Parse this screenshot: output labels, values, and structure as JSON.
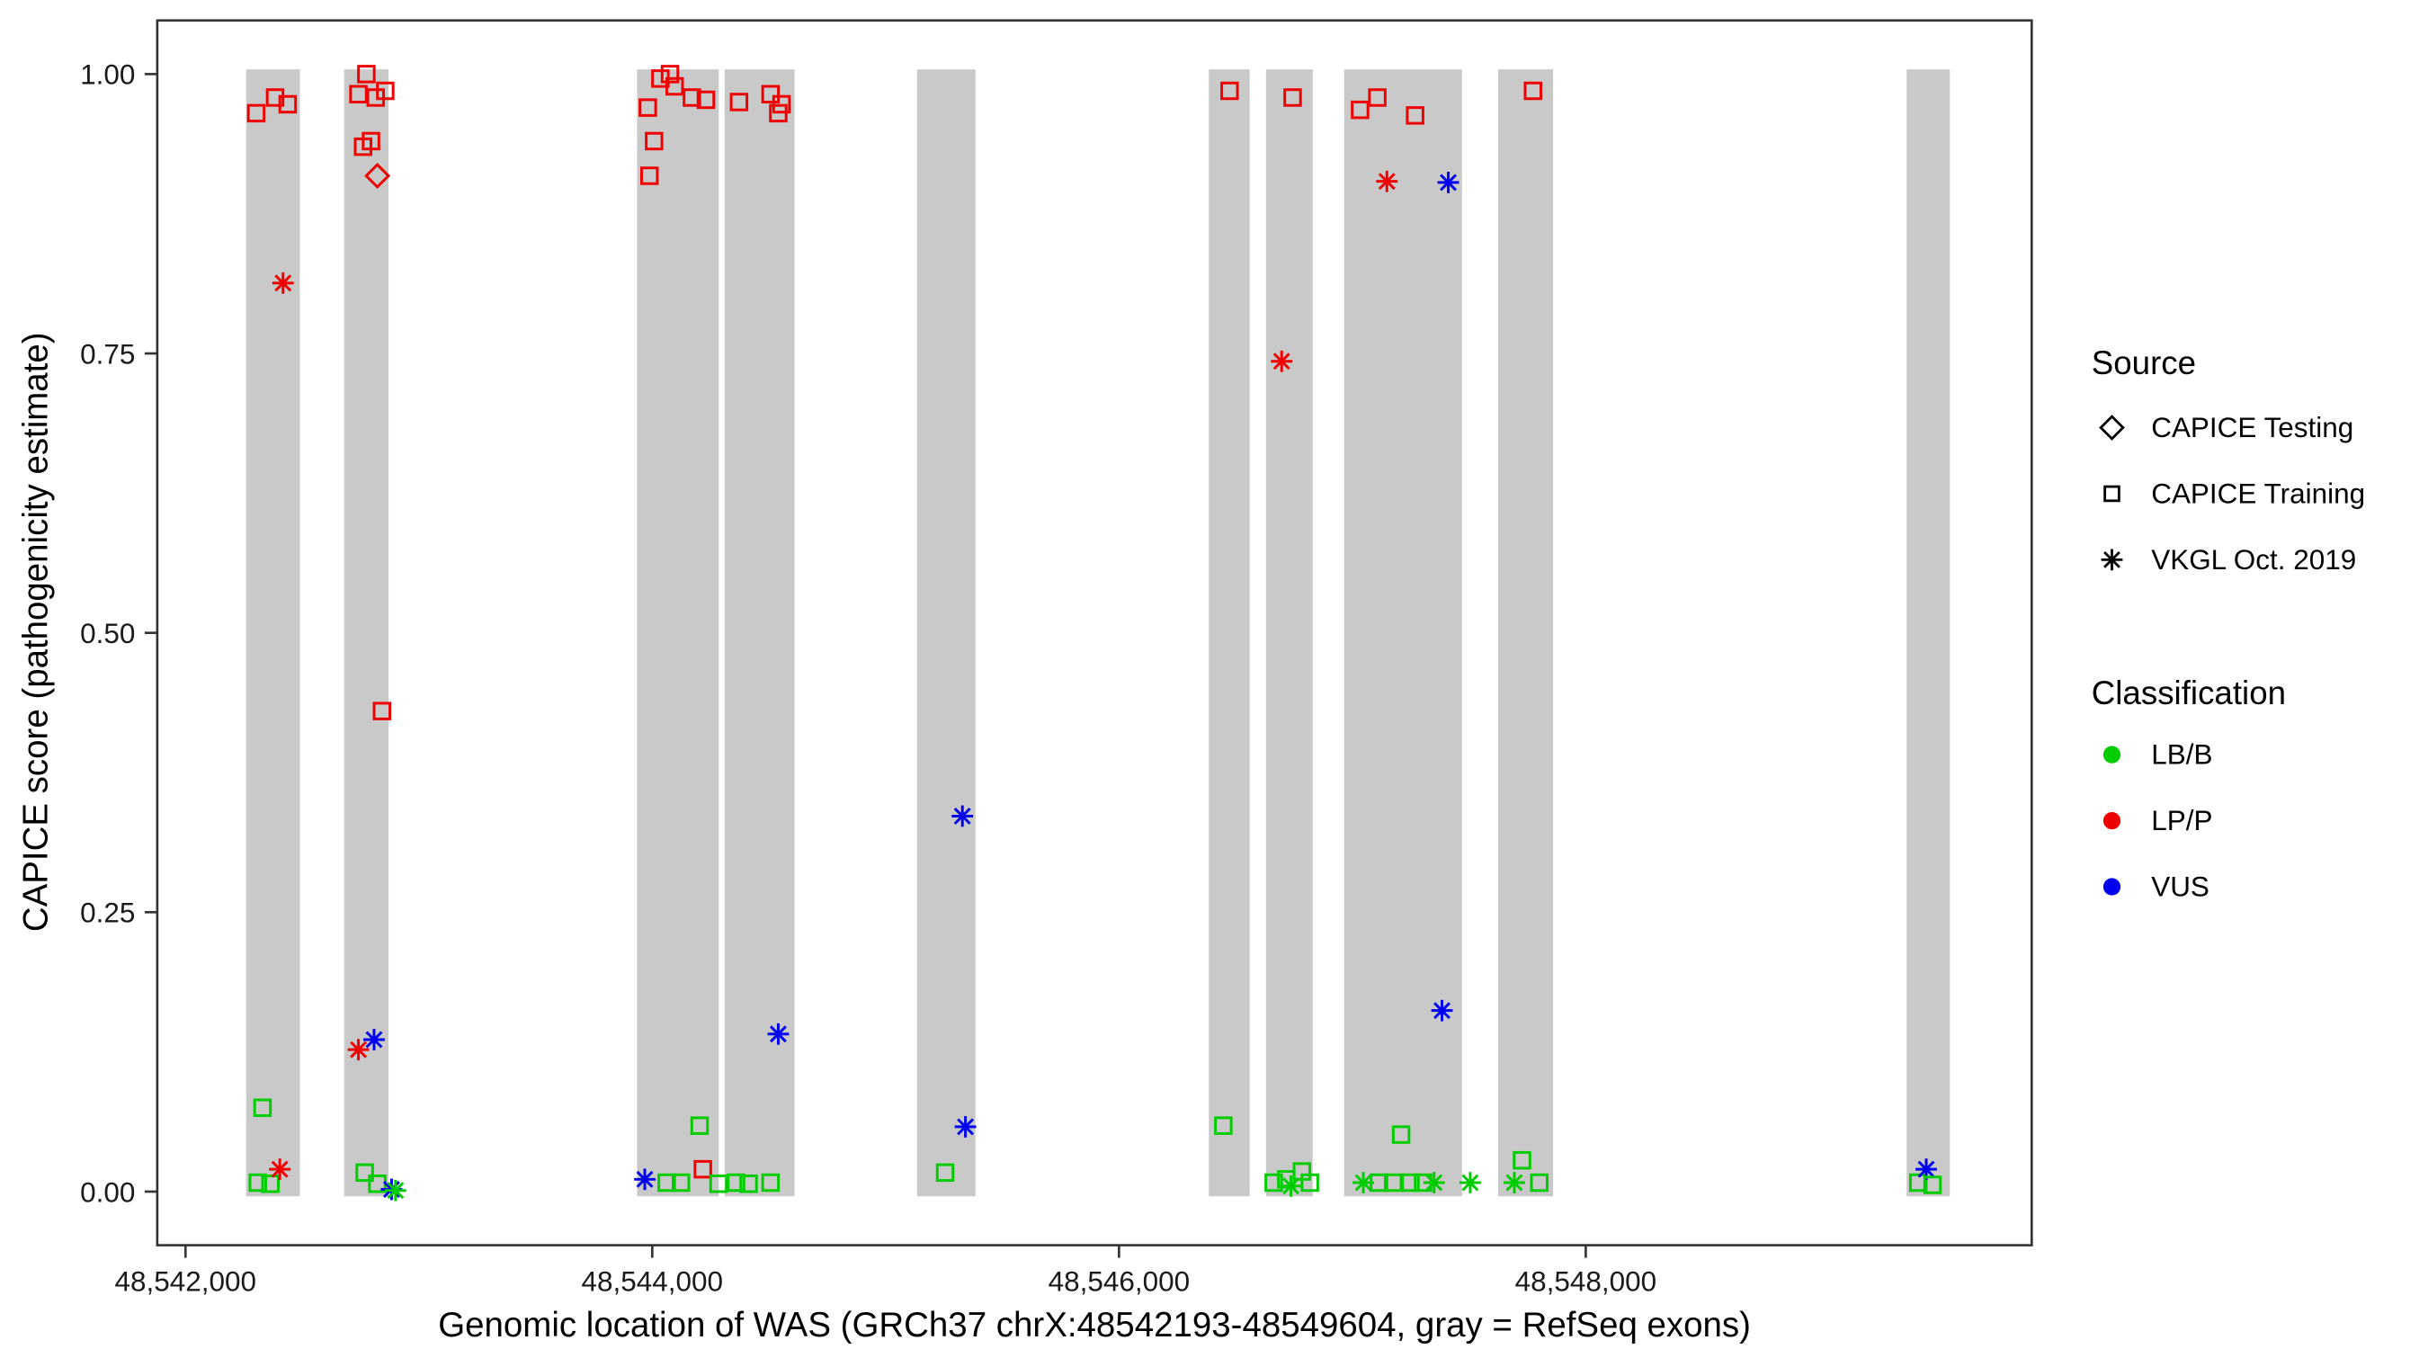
{
  "chart_data": {
    "type": "scatter",
    "title": "",
    "xlabel": "Genomic location of WAS (GRCh37 chrX:48542193-48549604, gray = RefSeq exons)",
    "ylabel": "CAPICE score (pathogenicity estimate)",
    "x_domain": [
      48541879,
      48549911
    ],
    "y_domain": [
      -0.048,
      1.048
    ],
    "x_ticks": [
      {
        "value": 48542000,
        "label": "48,542,000"
      },
      {
        "value": 48544000,
        "label": "48,544,000"
      },
      {
        "value": 48546000,
        "label": "48,546,000"
      },
      {
        "value": 48548000,
        "label": "48,548,000"
      }
    ],
    "y_ticks": [
      {
        "value": 0.0,
        "label": "0.00"
      },
      {
        "value": 0.25,
        "label": "0.25"
      },
      {
        "value": 0.5,
        "label": "0.50"
      },
      {
        "value": 0.75,
        "label": "0.75"
      },
      {
        "value": 1.0,
        "label": "1.00"
      }
    ],
    "exon_color": "#C9C9C9",
    "exons": [
      [
        48542260,
        48542490
      ],
      [
        48542680,
        48542870
      ],
      [
        48543935,
        48544285
      ],
      [
        48544310,
        48544610
      ],
      [
        48545135,
        48545385
      ],
      [
        48546385,
        48546560
      ],
      [
        48546630,
        48546830
      ],
      [
        48546965,
        48547470
      ],
      [
        48547625,
        48547860
      ],
      [
        48549375,
        48549560
      ]
    ],
    "colors": {
      "LB/B": "#00CC00",
      "LP/P": "#EE0000",
      "VUS": "#0000EE"
    },
    "shapes": {
      "CAPICE Testing": "diamond",
      "CAPICE Training": "square",
      "VKGL Oct. 2019": "asterisk"
    },
    "points": [
      {
        "x": 48542303,
        "y": 0.965,
        "source": "CAPICE Training",
        "class": "LP/P"
      },
      {
        "x": 48542310,
        "y": 0.008,
        "source": "CAPICE Training",
        "class": "LB/B"
      },
      {
        "x": 48542330,
        "y": 0.075,
        "source": "CAPICE Training",
        "class": "LB/B"
      },
      {
        "x": 48542364,
        "y": 0.007,
        "source": "CAPICE Training",
        "class": "LB/B"
      },
      {
        "x": 48542384,
        "y": 0.979,
        "source": "CAPICE Training",
        "class": "LP/P"
      },
      {
        "x": 48542404,
        "y": 0.02,
        "source": "VKGL Oct. 2019",
        "class": "LP/P"
      },
      {
        "x": 48542418,
        "y": 0.813,
        "source": "VKGL Oct. 2019",
        "class": "LP/P"
      },
      {
        "x": 48542438,
        "y": 0.973,
        "source": "CAPICE Training",
        "class": "LP/P"
      },
      {
        "x": 48542741,
        "y": 0.982,
        "source": "CAPICE Training",
        "class": "LP/P"
      },
      {
        "x": 48542741,
        "y": 0.127,
        "source": "VKGL Oct. 2019",
        "class": "LP/P"
      },
      {
        "x": 48542761,
        "y": 0.935,
        "source": "CAPICE Training",
        "class": "LP/P"
      },
      {
        "x": 48542768,
        "y": 0.017,
        "source": "CAPICE Training",
        "class": "LB/B"
      },
      {
        "x": 48542775,
        "y": 1.0,
        "source": "CAPICE Training",
        "class": "LP/P"
      },
      {
        "x": 48542795,
        "y": 0.94,
        "source": "CAPICE Training",
        "class": "LP/P"
      },
      {
        "x": 48542808,
        "y": 0.136,
        "source": "VKGL Oct. 2019",
        "class": "VUS"
      },
      {
        "x": 48542815,
        "y": 0.979,
        "source": "CAPICE Training",
        "class": "LP/P"
      },
      {
        "x": 48542822,
        "y": 0.909,
        "source": "CAPICE Testing",
        "class": "LP/P"
      },
      {
        "x": 48542822,
        "y": 0.007,
        "source": "CAPICE Training",
        "class": "LB/B"
      },
      {
        "x": 48542842,
        "y": 0.43,
        "source": "CAPICE Training",
        "class": "LP/P"
      },
      {
        "x": 48542856,
        "y": 0.985,
        "source": "CAPICE Training",
        "class": "LP/P"
      },
      {
        "x": 48542883,
        "y": 0.002,
        "source": "VKGL Oct. 2019",
        "class": "VUS"
      },
      {
        "x": 48542900,
        "y": 0.001,
        "source": "VKGL Oct. 2019",
        "class": "LB/B"
      },
      {
        "x": 48543968,
        "y": 0.011,
        "source": "VKGL Oct. 2019",
        "class": "VUS"
      },
      {
        "x": 48543981,
        "y": 0.97,
        "source": "CAPICE Training",
        "class": "LP/P"
      },
      {
        "x": 48543988,
        "y": 0.909,
        "source": "CAPICE Training",
        "class": "LP/P"
      },
      {
        "x": 48544008,
        "y": 0.94,
        "source": "CAPICE Training",
        "class": "LP/P"
      },
      {
        "x": 48544035,
        "y": 0.996,
        "source": "CAPICE Training",
        "class": "LP/P"
      },
      {
        "x": 48544062,
        "y": 0.008,
        "source": "CAPICE Training",
        "class": "LB/B"
      },
      {
        "x": 48544076,
        "y": 1.0,
        "source": "CAPICE Training",
        "class": "LP/P"
      },
      {
        "x": 48544096,
        "y": 0.989,
        "source": "CAPICE Training",
        "class": "LP/P"
      },
      {
        "x": 48544123,
        "y": 0.008,
        "source": "CAPICE Training",
        "class": "LB/B"
      },
      {
        "x": 48544170,
        "y": 0.979,
        "source": "CAPICE Training",
        "class": "LP/P"
      },
      {
        "x": 48544203,
        "y": 0.059,
        "source": "CAPICE Training",
        "class": "LB/B"
      },
      {
        "x": 48544217,
        "y": 0.02,
        "source": "CAPICE Training",
        "class": "LP/P"
      },
      {
        "x": 48544230,
        "y": 0.977,
        "source": "CAPICE Training",
        "class": "LP/P"
      },
      {
        "x": 48544284,
        "y": 0.007,
        "source": "CAPICE Training",
        "class": "LB/B"
      },
      {
        "x": 48544359,
        "y": 0.008,
        "source": "CAPICE Training",
        "class": "LB/B"
      },
      {
        "x": 48544372,
        "y": 0.975,
        "source": "CAPICE Training",
        "class": "LP/P"
      },
      {
        "x": 48544413,
        "y": 0.007,
        "source": "CAPICE Training",
        "class": "LB/B"
      },
      {
        "x": 48544507,
        "y": 0.982,
        "source": "CAPICE Training",
        "class": "LP/P"
      },
      {
        "x": 48544507,
        "y": 0.008,
        "source": "CAPICE Training",
        "class": "LB/B"
      },
      {
        "x": 48544540,
        "y": 0.965,
        "source": "CAPICE Training",
        "class": "LP/P"
      },
      {
        "x": 48544540,
        "y": 0.141,
        "source": "VKGL Oct. 2019",
        "class": "VUS"
      },
      {
        "x": 48544554,
        "y": 0.973,
        "source": "CAPICE Training",
        "class": "LP/P"
      },
      {
        "x": 48545255,
        "y": 0.017,
        "source": "CAPICE Training",
        "class": "LB/B"
      },
      {
        "x": 48545329,
        "y": 0.336,
        "source": "VKGL Oct. 2019",
        "class": "VUS"
      },
      {
        "x": 48545342,
        "y": 0.058,
        "source": "VKGL Oct. 2019",
        "class": "VUS"
      },
      {
        "x": 48546447,
        "y": 0.059,
        "source": "CAPICE Training",
        "class": "LB/B"
      },
      {
        "x": 48546474,
        "y": 0.985,
        "source": "CAPICE Training",
        "class": "LP/P"
      },
      {
        "x": 48546663,
        "y": 0.008,
        "source": "CAPICE Training",
        "class": "LB/B"
      },
      {
        "x": 48546697,
        "y": 0.743,
        "source": "VKGL Oct. 2019",
        "class": "LP/P"
      },
      {
        "x": 48546717,
        "y": 0.011,
        "source": "CAPICE Training",
        "class": "LB/B"
      },
      {
        "x": 48546737,
        "y": 0.005,
        "source": "VKGL Oct. 2019",
        "class": "LB/B"
      },
      {
        "x": 48546744,
        "y": 0.979,
        "source": "CAPICE Training",
        "class": "LP/P"
      },
      {
        "x": 48546784,
        "y": 0.018,
        "source": "CAPICE Training",
        "class": "LB/B"
      },
      {
        "x": 48546818,
        "y": 0.008,
        "source": "CAPICE Training",
        "class": "LB/B"
      },
      {
        "x": 48547033,
        "y": 0.968,
        "source": "CAPICE Training",
        "class": "LP/P"
      },
      {
        "x": 48547047,
        "y": 0.008,
        "source": "VKGL Oct. 2019",
        "class": "LB/B"
      },
      {
        "x": 48547107,
        "y": 0.979,
        "source": "CAPICE Training",
        "class": "LP/P"
      },
      {
        "x": 48547114,
        "y": 0.008,
        "source": "CAPICE Training",
        "class": "LB/B"
      },
      {
        "x": 48547148,
        "y": 0.904,
        "source": "VKGL Oct. 2019",
        "class": "LP/P"
      },
      {
        "x": 48547175,
        "y": 0.008,
        "source": "CAPICE Training",
        "class": "LB/B"
      },
      {
        "x": 48547209,
        "y": 0.051,
        "source": "CAPICE Training",
        "class": "LB/B"
      },
      {
        "x": 48547249,
        "y": 0.008,
        "source": "CAPICE Training",
        "class": "LB/B"
      },
      {
        "x": 48547269,
        "y": 0.963,
        "source": "CAPICE Training",
        "class": "LP/P"
      },
      {
        "x": 48547303,
        "y": 0.008,
        "source": "CAPICE Training",
        "class": "LB/B"
      },
      {
        "x": 48547350,
        "y": 0.008,
        "source": "VKGL Oct. 2019",
        "class": "LB/B"
      },
      {
        "x": 48547384,
        "y": 0.162,
        "source": "VKGL Oct. 2019",
        "class": "VUS"
      },
      {
        "x": 48547411,
        "y": 0.903,
        "source": "VKGL Oct. 2019",
        "class": "VUS"
      },
      {
        "x": 48547505,
        "y": 0.008,
        "source": "VKGL Oct. 2019",
        "class": "LB/B"
      },
      {
        "x": 48547694,
        "y": 0.008,
        "source": "VKGL Oct. 2019",
        "class": "LB/B"
      },
      {
        "x": 48547727,
        "y": 0.028,
        "source": "CAPICE Training",
        "class": "LB/B"
      },
      {
        "x": 48547774,
        "y": 0.985,
        "source": "CAPICE Training",
        "class": "LP/P"
      },
      {
        "x": 48547801,
        "y": 0.008,
        "source": "CAPICE Training",
        "class": "LB/B"
      },
      {
        "x": 48549425,
        "y": 0.008,
        "source": "CAPICE Training",
        "class": "LB/B"
      },
      {
        "x": 48549459,
        "y": 0.02,
        "source": "VKGL Oct. 2019",
        "class": "VUS"
      },
      {
        "x": 48549486,
        "y": 0.006,
        "source": "CAPICE Training",
        "class": "LB/B"
      }
    ]
  },
  "legend": {
    "source_title": "Source",
    "source_items": [
      {
        "label": "CAPICE Testing",
        "shape": "diamond"
      },
      {
        "label": "CAPICE Training",
        "shape": "square"
      },
      {
        "label": "VKGL Oct. 2019",
        "shape": "asterisk"
      }
    ],
    "classification_title": "Classification",
    "classification_items": [
      {
        "label": "LB/B",
        "color": "#00CC00"
      },
      {
        "label": "LP/P",
        "color": "#EE0000"
      },
      {
        "label": "VUS",
        "color": "#0000EE"
      }
    ]
  }
}
